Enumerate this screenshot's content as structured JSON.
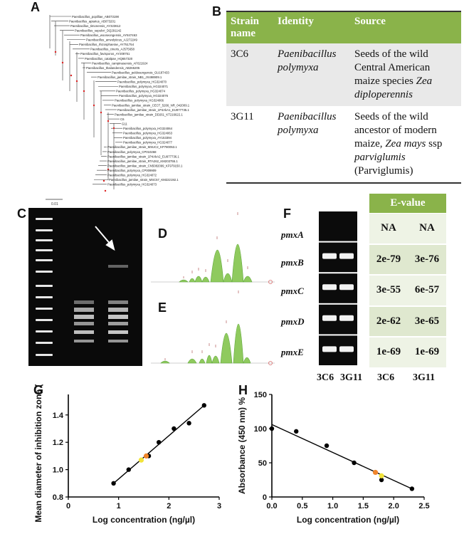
{
  "panel_labels": {
    "A": "A",
    "B": "B",
    "C": "C",
    "D": "D",
    "E": "E",
    "F": "F",
    "G": "G",
    "H": "H"
  },
  "tree": {
    "taxa": [
      "Paenibacillus_popilliae_AB073198",
      "Paenibacillus_apiarius_AB073201",
      "Paenibacillus_timonensis_AY323612",
      "Paenibacillus_sepulcri_DQ291142",
      "Paenibacillus_wooseongensis_AY847463",
      "Paenibacillus_amvolyticus_AJ272249",
      "Paenibacillus_rhizosphaerae_AY751754",
      "Paenibacillus_cineris_AJ575658",
      "Paenibacillus_favisporus_AY208751",
      "Paenibacillus_catalpae_HQ657320",
      "Paenibacillus_campinasensis_AF021924",
      "Paenibacillus_thailandensis_AB265205",
      "Paenibacillus_peldosengensis_GU187433",
      "Paenibacillus_jamilae_strain_NB1_JX498909.1",
      "Paenibacillus_polymyxa_HG324070",
      "Paenibacillus_polymyxa_HG324071",
      "Paenibacillus_polymyxa_HG324074",
      "Paenibacillus_polymyxa_HG324076",
      "Paenibacillus_polymyxa_HG324066",
      "Paenibacillus_jamilae_strain_CECT_5266_NR_042009.1",
      "Paenibacillus_jamilae_strain_1P4AkA1_EU977735.1",
      "Paenibacillus_jamilae_strain_DD261_KT216622.1",
      "C6",
      "G11",
      "Paenibacillus_polymyxa_HG324064",
      "Paenibacillus_polymyxa_HG324063",
      "Paenibacillus_polymyxa_AY153394",
      "Paenibacillus_polymyxa_HG324077",
      "Paenibacillus_jamilae_strain_MSUC2_KP780053.1",
      "Paenibacillus_polymyxa_CP010268",
      "Paenibacillus_jamilae_strain_1P4AkA2_EU977736.1",
      "Paenibacillus_jamilae_strain_RTA262_KM203755.1",
      "Paenibacillus_jamilae_strain_CN5082099_KF979150.1",
      "Paenibacillus_polymyxa_CP009909",
      "Paenibacillus_polymyxa_HG324072",
      "Paenibacillus_jamilae_strain_MSC57_KM222192.1",
      "Paenibacillus_polymyxa_HG324073"
    ],
    "scale_label": "0.01"
  },
  "tableB": {
    "headers": [
      "Strain name",
      "Identity",
      "Source"
    ],
    "rows": [
      {
        "strain": "3C6",
        "identity": "Paenibacillus polymyxa",
        "source_pre": "Seeds of the wild Central American maize species ",
        "source_it": "Zea diploperennis",
        "source_post": ""
      },
      {
        "strain": "3G11",
        "identity": "Paenibacillus polymyxa",
        "source_pre": "Seeds of the wild ancestor of modern maize, ",
        "source_it": "Zea mays",
        "source_mid": " ssp ",
        "source_it2": "parviglumis",
        "source_post": " (Parviglumis)"
      }
    ]
  },
  "panelF": {
    "genes": [
      "pmxA",
      "pmxB",
      "pmxC",
      "pmxD",
      "pmxE"
    ],
    "evalue_header": "E-value",
    "evalues": [
      [
        "NA",
        "NA"
      ],
      [
        "2e-79",
        "3e-76"
      ],
      [
        "3e-55",
        "6e-57"
      ],
      [
        "2e-62",
        "3e-65"
      ],
      [
        "1e-69",
        "1e-69"
      ]
    ],
    "gel_lanes": [
      "3C6",
      "3G11"
    ],
    "table_cols": [
      "3C6",
      "3G11"
    ],
    "band_present": [
      false,
      true,
      true,
      true,
      true
    ],
    "colors": {
      "header": "#8ab34a",
      "cell": "#dfe8cf",
      "cell_alt": "#eef3e5"
    }
  },
  "chart_data": [
    {
      "id": "G",
      "type": "scatter",
      "xlabel": "Log concentration (ng/µl)",
      "ylabel": "Mean diameter of inhibition zone (cm)",
      "xlim": [
        0,
        3
      ],
      "ylim": [
        0.8,
        1.55
      ],
      "xticks": [
        "0",
        "1",
        "2",
        "3"
      ],
      "yticks": [
        "0.8",
        "1.0",
        "1.2",
        "1.4"
      ],
      "points": [
        [
          0.9,
          0.9
        ],
        [
          1.2,
          1.0
        ],
        [
          1.6,
          1.1
        ],
        [
          1.8,
          1.2
        ],
        [
          2.1,
          1.3
        ],
        [
          2.4,
          1.34
        ],
        [
          2.7,
          1.47
        ]
      ],
      "highlight": [
        {
          "x": 1.45,
          "y": 1.07,
          "color": "#f2e33a"
        },
        {
          "x": 1.55,
          "y": 1.1,
          "color": "#f0852b"
        }
      ],
      "fit": [
        [
          0.9,
          0.9
        ],
        [
          2.7,
          1.47
        ]
      ]
    },
    {
      "id": "H",
      "type": "scatter",
      "xlabel": "Log concentration (ng/µl)",
      "ylabel": "Absorbance (450 nm) %",
      "xlim": [
        0,
        2.5
      ],
      "ylim": [
        0,
        150
      ],
      "xticks": [
        "0.0",
        "0.5",
        "1.0",
        "1.5",
        "2.0",
        "2.5"
      ],
      "yticks": [
        "0",
        "50",
        "100",
        "150"
      ],
      "points": [
        [
          0.0,
          100
        ],
        [
          0.4,
          96
        ],
        [
          0.9,
          75
        ],
        [
          1.35,
          50
        ],
        [
          1.8,
          25
        ],
        [
          2.3,
          12
        ]
      ],
      "highlight": [
        {
          "x": 1.7,
          "y": 36,
          "color": "#f0852b"
        },
        {
          "x": 1.8,
          "y": 31,
          "color": "#f2e33a"
        }
      ],
      "fit": [
        [
          0.0,
          106
        ],
        [
          2.3,
          12
        ]
      ]
    }
  ]
}
